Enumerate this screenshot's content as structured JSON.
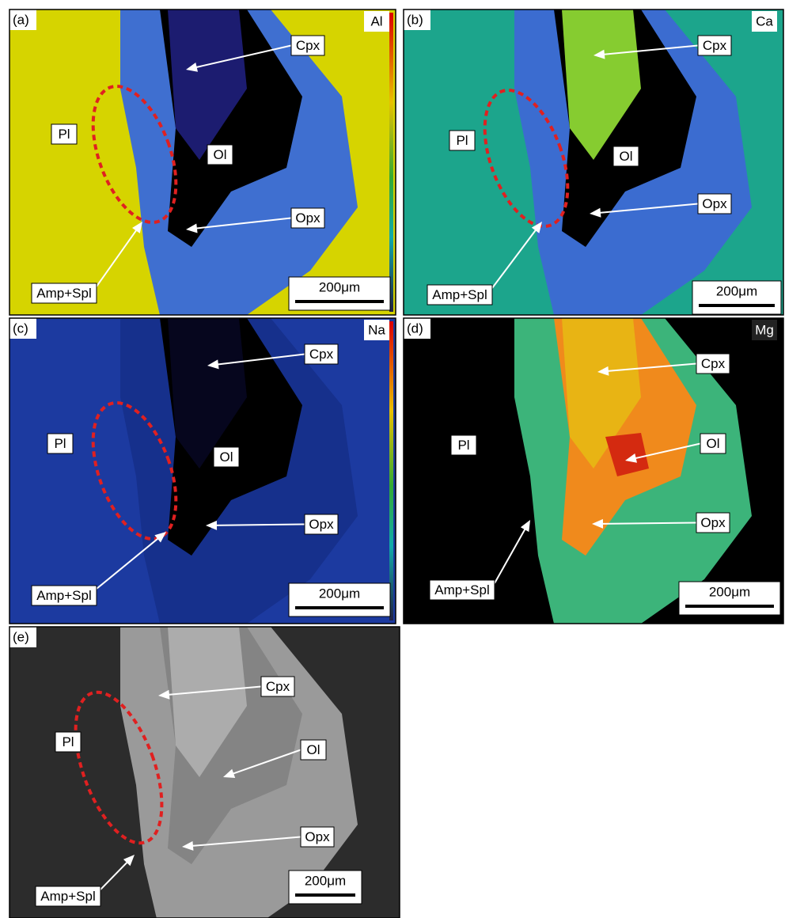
{
  "panels": [
    {
      "label": "(a)",
      "element": "Al",
      "annotations": [
        "Cpx",
        "Ol",
        "Opx",
        "Amp+Spl",
        "Pl"
      ],
      "scale_bar": "200μm"
    },
    {
      "label": "(b)",
      "element": "Ca",
      "annotations": [
        "Cpx",
        "Ol",
        "Opx",
        "Amp+Spl",
        "Pl"
      ],
      "scale_bar": "200μm"
    },
    {
      "label": "(c)",
      "element": "Na",
      "annotations": [
        "Cpx",
        "Ol",
        "Opx",
        "Amp+Spl",
        "Pl"
      ],
      "scale_bar": "200μm"
    },
    {
      "label": "(d)",
      "element": "Mg",
      "annotations": [
        "Cpx",
        "Ol",
        "Opx",
        "Amp+Spl",
        "Pl"
      ],
      "scale_bar": "200μm"
    },
    {
      "label": "(e)",
      "annotations": [
        "Cpx",
        "Ol",
        "Opx",
        "Amp+Spl",
        "Pl"
      ],
      "scale_bar": "200μm"
    }
  ]
}
